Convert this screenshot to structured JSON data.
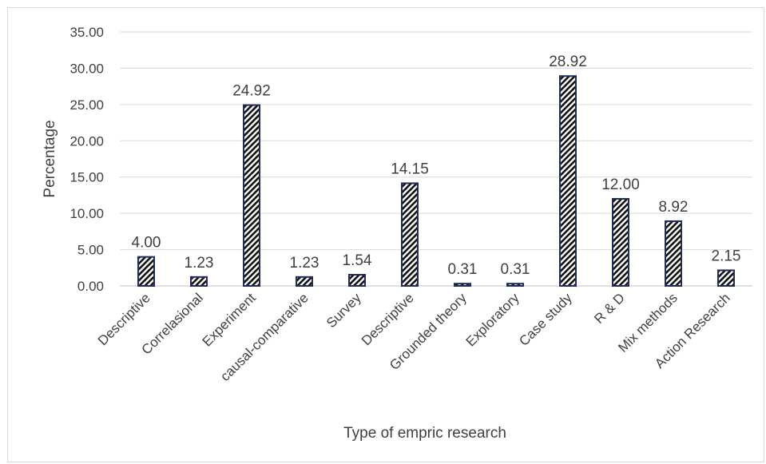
{
  "chart_data": {
    "type": "bar",
    "categories": [
      "Descriptive",
      "Correlasional",
      "Experiment",
      "causal-comparative",
      "Survey",
      "Descriptive",
      "Grounded theory",
      "Exploratory",
      "Case study",
      "R & D",
      "Mix methods",
      "Action Research"
    ],
    "values": [
      4.0,
      1.23,
      24.92,
      1.23,
      1.54,
      14.15,
      0.31,
      0.31,
      28.92,
      12.0,
      8.92,
      2.15
    ],
    "data_labels": [
      "4.00",
      "1.23",
      "24.92",
      "1.23",
      "1.54",
      "14.15",
      "0.31",
      "0.31",
      "28.92",
      "12.00",
      "8.92",
      "2.15"
    ],
    "y_ticks": [
      "0.00",
      "5.00",
      "10.00",
      "15.00",
      "20.00",
      "25.00",
      "30.00",
      "35.00"
    ],
    "ylim": [
      0,
      35
    ],
    "xlabel": "Type of empric research",
    "ylabel": "Percentage",
    "grid": true,
    "colors": {
      "bar_border": "#1f2d5a",
      "bar_hatch": "#111111",
      "grid": "#d9d9d9",
      "text": "#404040"
    }
  }
}
